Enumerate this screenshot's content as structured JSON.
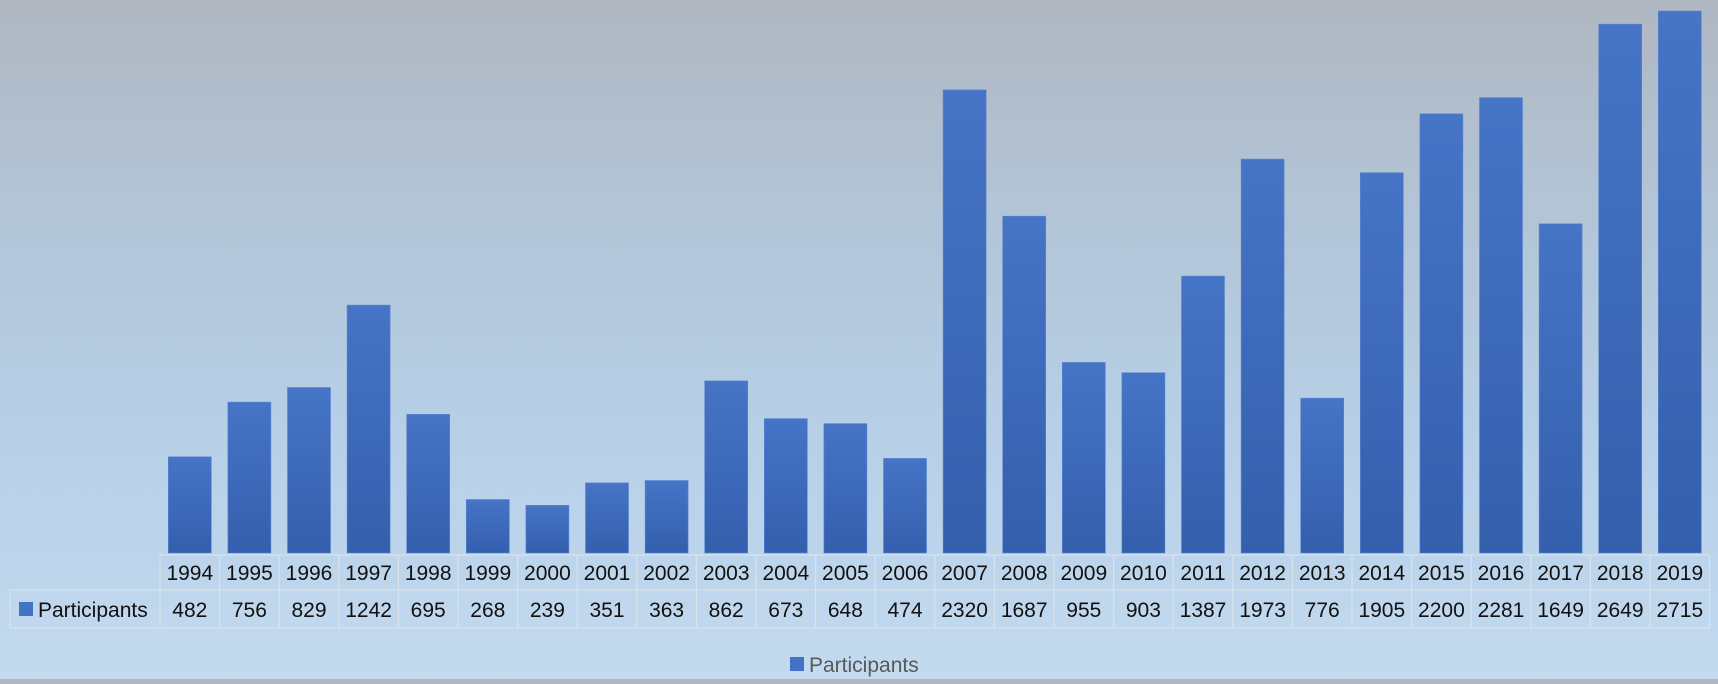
{
  "chart_data": {
    "type": "bar",
    "title": "",
    "xlabel": "",
    "ylabel": "",
    "categories": [
      "1994",
      "1995",
      "1996",
      "1997",
      "1998",
      "1999",
      "2000",
      "2001",
      "2002",
      "2003",
      "2004",
      "2005",
      "2006",
      "2007",
      "2008",
      "2009",
      "2010",
      "2011",
      "2012",
      "2013",
      "2014",
      "2015",
      "2016",
      "2017",
      "2018",
      "2019"
    ],
    "series": [
      {
        "name": "Participants",
        "values": [
          482,
          756,
          829,
          1242,
          695,
          268,
          239,
          351,
          363,
          862,
          673,
          648,
          474,
          2320,
          1687,
          955,
          903,
          1387,
          1973,
          776,
          1905,
          2200,
          2281,
          1649,
          2649,
          2715
        ]
      }
    ],
    "ylim": [
      0,
      2715
    ],
    "data_table": true,
    "legend_position": "bottom",
    "colors": {
      "bar": "#4472c4",
      "bar_dark": "#3561b0",
      "table_border": "#d9e2ea"
    }
  }
}
